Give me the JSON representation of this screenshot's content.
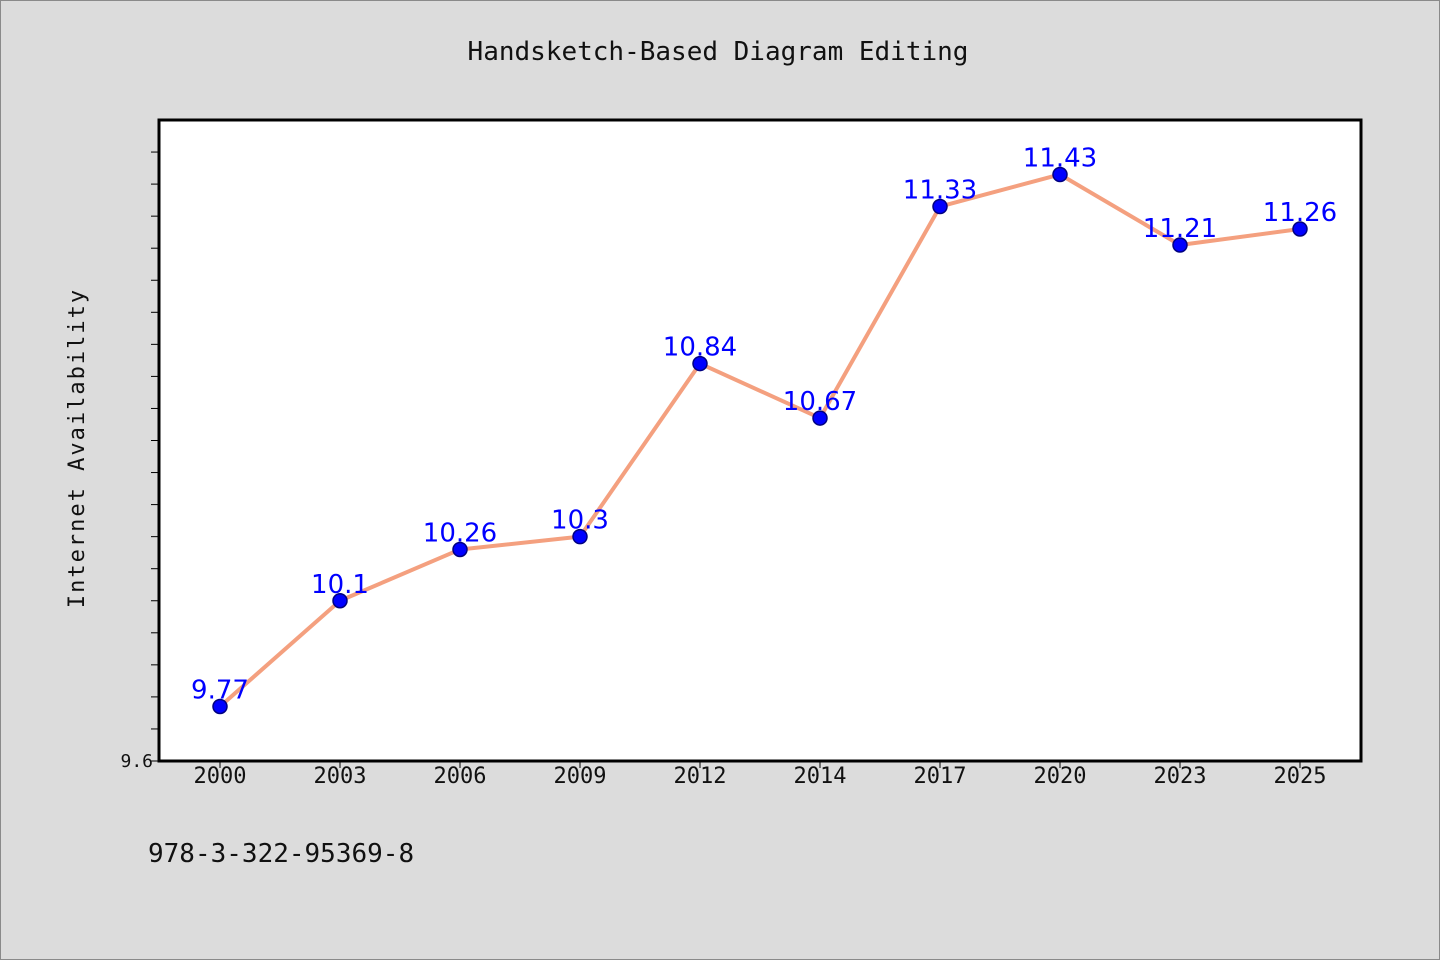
{
  "chart_data": {
    "type": "line",
    "title": "Handsketch-Based Diagram Editing",
    "xlabel": "",
    "ylabel": "Internet Availability",
    "categories": [
      "2000",
      "2003",
      "2006",
      "2009",
      "2012",
      "2014",
      "2017",
      "2020",
      "2023",
      "2025"
    ],
    "series": [
      {
        "values": [
          9.77,
          10.1,
          10.26,
          10.3,
          10.84,
          10.67,
          11.33,
          11.43,
          11.21,
          11.26
        ],
        "data_labels": [
          "9.77",
          "10.1",
          "10.26",
          "10.3",
          "10.84",
          "10.67",
          "11.33",
          "11.43",
          "11.21",
          "11.26"
        ]
      }
    ],
    "ylim": [
      9.6,
      11.6
    ],
    "y_tick_labels": [
      "9.6"
    ],
    "grid": false,
    "legend": "none",
    "colors": {
      "line": "#f4a07f",
      "marker": "#0000ff",
      "marker_edge": "#000080",
      "data_label": "#0000ff",
      "background": "#dcdcdc",
      "plot_background": "#ffffff"
    }
  },
  "footer_code": "978-3-322-95369-8"
}
